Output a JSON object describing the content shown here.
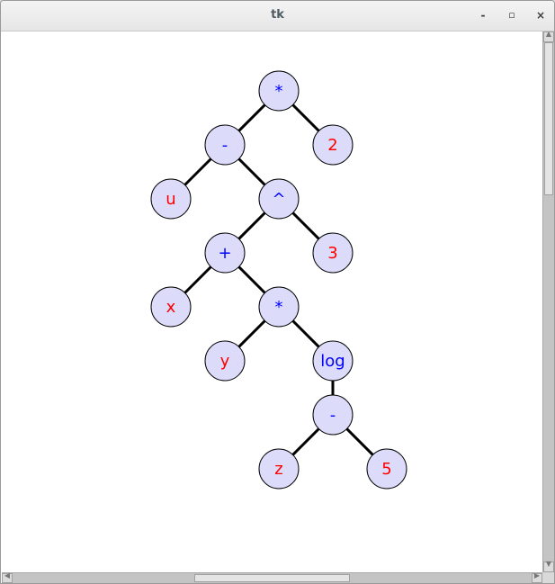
{
  "window": {
    "title": "tk",
    "controls": {
      "minimize": "-",
      "maximize": "▫",
      "close": "×"
    }
  },
  "colors": {
    "node_fill": "#dcdcfa",
    "operator_text": "#0000ff",
    "operand_text": "#ff0000",
    "edge": "#000000"
  },
  "tree": {
    "nodes": [
      {
        "id": "n0",
        "label": "*",
        "kind": "operator"
      },
      {
        "id": "n1",
        "label": "-",
        "kind": "operator"
      },
      {
        "id": "n2",
        "label": "2",
        "kind": "operand"
      },
      {
        "id": "n3",
        "label": "u",
        "kind": "operand"
      },
      {
        "id": "n4",
        "label": "^",
        "kind": "operator"
      },
      {
        "id": "n5",
        "label": "+",
        "kind": "operator"
      },
      {
        "id": "n6",
        "label": "3",
        "kind": "operand"
      },
      {
        "id": "n7",
        "label": "x",
        "kind": "operand"
      },
      {
        "id": "n8",
        "label": "*",
        "kind": "operator"
      },
      {
        "id": "n9",
        "label": "y",
        "kind": "operand"
      },
      {
        "id": "n10",
        "label": "log",
        "kind": "operator"
      },
      {
        "id": "n11",
        "label": "-",
        "kind": "operator"
      },
      {
        "id": "n12",
        "label": "z",
        "kind": "operand"
      },
      {
        "id": "n13",
        "label": "5",
        "kind": "operand"
      }
    ],
    "edges": [
      [
        "n0",
        "n1"
      ],
      [
        "n0",
        "n2"
      ],
      [
        "n1",
        "n3"
      ],
      [
        "n1",
        "n4"
      ],
      [
        "n4",
        "n5"
      ],
      [
        "n4",
        "n6"
      ],
      [
        "n5",
        "n7"
      ],
      [
        "n5",
        "n8"
      ],
      [
        "n8",
        "n9"
      ],
      [
        "n8",
        "n10"
      ],
      [
        "n10",
        "n11"
      ],
      [
        "n11",
        "n12"
      ],
      [
        "n11",
        "n13"
      ]
    ]
  }
}
